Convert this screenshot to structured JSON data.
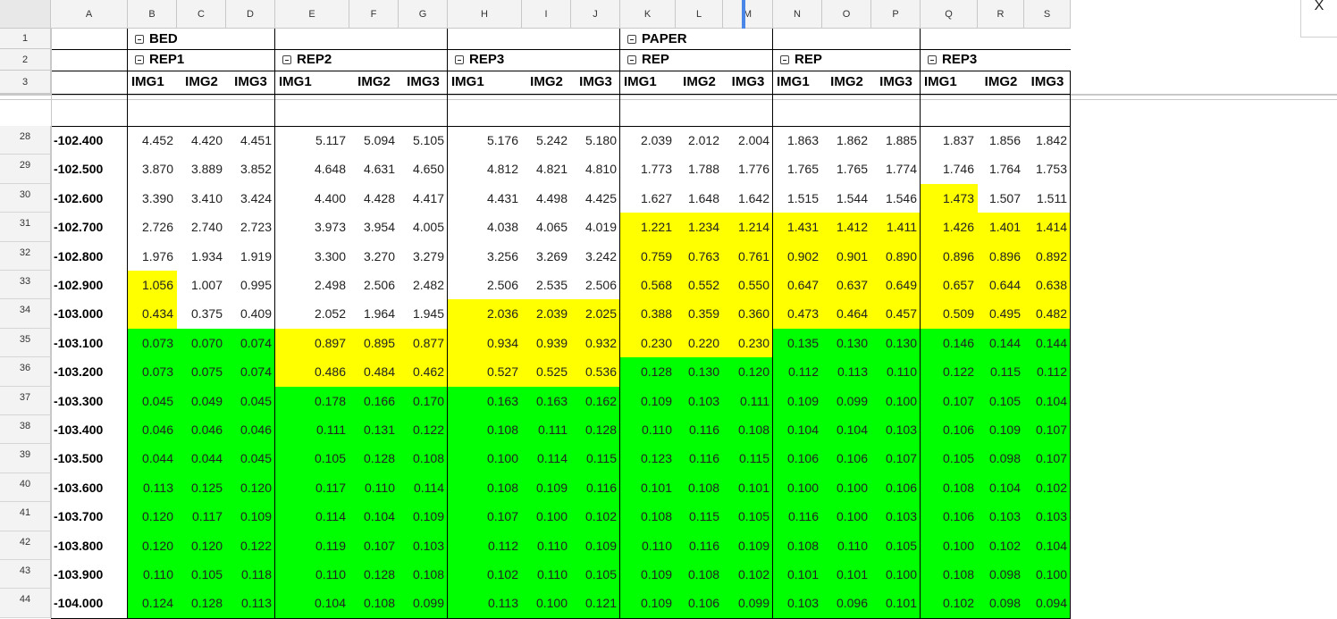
{
  "columns": [
    "A",
    "B",
    "C",
    "D",
    "E",
    "F",
    "G",
    "H",
    "I",
    "J",
    "K",
    "L",
    "M",
    "N",
    "O",
    "P",
    "Q",
    "R",
    "S"
  ],
  "group_headers": [
    {
      "label": "BED",
      "start": 1
    },
    {
      "label": "PAPER",
      "start": 10
    }
  ],
  "rep_headers": [
    {
      "label": "REP1",
      "start": 1
    },
    {
      "label": "REP2",
      "start": 4
    },
    {
      "label": "REP3",
      "start": 7
    },
    {
      "label": "REP",
      "start": 10
    },
    {
      "label": "REP",
      "start": 13
    },
    {
      "label": "REP3",
      "start": 16
    }
  ],
  "img_headers": [
    "IMG1",
    "IMG2",
    "IMG3"
  ],
  "header_row_numbers": [
    "1",
    "2",
    "3"
  ],
  "data_rows": [
    {
      "n": "28",
      "label": "-102.400",
      "v": [
        "4.452",
        "4.420",
        "4.451",
        "5.117",
        "5.094",
        "5.105",
        "5.176",
        "5.242",
        "5.180",
        "2.039",
        "2.012",
        "2.004",
        "1.863",
        "1.862",
        "1.885",
        "1.837",
        "1.856",
        "1.842"
      ]
    },
    {
      "n": "29",
      "label": "-102.500",
      "v": [
        "3.870",
        "3.889",
        "3.852",
        "4.648",
        "4.631",
        "4.650",
        "4.812",
        "4.821",
        "4.810",
        "1.773",
        "1.788",
        "1.776",
        "1.765",
        "1.765",
        "1.774",
        "1.746",
        "1.764",
        "1.753"
      ]
    },
    {
      "n": "30",
      "label": "-102.600",
      "v": [
        "3.390",
        "3.410",
        "3.424",
        "4.400",
        "4.428",
        "4.417",
        "4.431",
        "4.498",
        "4.425",
        "1.627",
        "1.648",
        "1.642",
        "1.515",
        "1.544",
        "1.546",
        "1.473",
        "1.507",
        "1.511"
      ]
    },
    {
      "n": "31",
      "label": "-102.700",
      "v": [
        "2.726",
        "2.740",
        "2.723",
        "3.973",
        "3.954",
        "4.005",
        "4.038",
        "4.065",
        "4.019",
        "1.221",
        "1.234",
        "1.214",
        "1.431",
        "1.412",
        "1.411",
        "1.426",
        "1.401",
        "1.414"
      ]
    },
    {
      "n": "32",
      "label": "-102.800",
      "v": [
        "1.976",
        "1.934",
        "1.919",
        "3.300",
        "3.270",
        "3.279",
        "3.256",
        "3.269",
        "3.242",
        "0.759",
        "0.763",
        "0.761",
        "0.902",
        "0.901",
        "0.890",
        "0.896",
        "0.896",
        "0.892"
      ]
    },
    {
      "n": "33",
      "label": "-102.900",
      "v": [
        "1.056",
        "1.007",
        "0.995",
        "2.498",
        "2.506",
        "2.482",
        "2.506",
        "2.535",
        "2.506",
        "0.568",
        "0.552",
        "0.550",
        "0.647",
        "0.637",
        "0.649",
        "0.657",
        "0.644",
        "0.638"
      ]
    },
    {
      "n": "34",
      "label": "-103.000",
      "v": [
        "0.434",
        "0.375",
        "0.409",
        "2.052",
        "1.964",
        "1.945",
        "2.036",
        "2.039",
        "2.025",
        "0.388",
        "0.359",
        "0.360",
        "0.473",
        "0.464",
        "0.457",
        "0.509",
        "0.495",
        "0.482"
      ]
    },
    {
      "n": "35",
      "label": "-103.100",
      "v": [
        "0.073",
        "0.070",
        "0.074",
        "0.897",
        "0.895",
        "0.877",
        "0.934",
        "0.939",
        "0.932",
        "0.230",
        "0.220",
        "0.230",
        "0.135",
        "0.130",
        "0.130",
        "0.146",
        "0.144",
        "0.144"
      ]
    },
    {
      "n": "36",
      "label": "-103.200",
      "v": [
        "0.073",
        "0.075",
        "0.074",
        "0.486",
        "0.484",
        "0.462",
        "0.527",
        "0.525",
        "0.536",
        "0.128",
        "0.130",
        "0.120",
        "0.112",
        "0.113",
        "0.110",
        "0.122",
        "0.115",
        "0.112"
      ]
    },
    {
      "n": "37",
      "label": "-103.300",
      "v": [
        "0.045",
        "0.049",
        "0.045",
        "0.178",
        "0.166",
        "0.170",
        "0.163",
        "0.163",
        "0.162",
        "0.109",
        "0.103",
        "0.111",
        "0.109",
        "0.099",
        "0.100",
        "0.107",
        "0.105",
        "0.104"
      ]
    },
    {
      "n": "38",
      "label": "-103.400",
      "v": [
        "0.046",
        "0.046",
        "0.046",
        "0.111",
        "0.131",
        "0.122",
        "0.108",
        "0.111",
        "0.128",
        "0.110",
        "0.116",
        "0.108",
        "0.104",
        "0.104",
        "0.103",
        "0.106",
        "0.109",
        "0.107"
      ]
    },
    {
      "n": "39",
      "label": "-103.500",
      "v": [
        "0.044",
        "0.044",
        "0.045",
        "0.105",
        "0.128",
        "0.108",
        "0.100",
        "0.114",
        "0.115",
        "0.123",
        "0.116",
        "0.115",
        "0.106",
        "0.106",
        "0.107",
        "0.105",
        "0.098",
        "0.107"
      ]
    },
    {
      "n": "40",
      "label": "-103.600",
      "v": [
        "0.113",
        "0.125",
        "0.120",
        "0.117",
        "0.110",
        "0.114",
        "0.108",
        "0.109",
        "0.116",
        "0.101",
        "0.108",
        "0.101",
        "0.100",
        "0.100",
        "0.106",
        "0.108",
        "0.104",
        "0.102"
      ]
    },
    {
      "n": "41",
      "label": "-103.700",
      "v": [
        "0.120",
        "0.117",
        "0.109",
        "0.114",
        "0.104",
        "0.109",
        "0.107",
        "0.100",
        "0.102",
        "0.108",
        "0.115",
        "0.105",
        "0.116",
        "0.100",
        "0.103",
        "0.106",
        "0.103",
        "0.103"
      ]
    },
    {
      "n": "42",
      "label": "-103.800",
      "v": [
        "0.120",
        "0.120",
        "0.122",
        "0.119",
        "0.107",
        "0.103",
        "0.112",
        "0.110",
        "0.109",
        "0.110",
        "0.116",
        "0.109",
        "0.108",
        "0.110",
        "0.105",
        "0.100",
        "0.102",
        "0.104"
      ]
    },
    {
      "n": "43",
      "label": "-103.900",
      "v": [
        "0.110",
        "0.105",
        "0.118",
        "0.110",
        "0.128",
        "0.108",
        "0.102",
        "0.110",
        "0.105",
        "0.109",
        "0.108",
        "0.102",
        "0.101",
        "0.101",
        "0.100",
        "0.108",
        "0.098",
        "0.100"
      ]
    },
    {
      "n": "44",
      "label": "-104.000",
      "v": [
        "0.124",
        "0.128",
        "0.113",
        "0.104",
        "0.108",
        "0.099",
        "0.113",
        "0.100",
        "0.121",
        "0.109",
        "0.106",
        "0.099",
        "0.103",
        "0.096",
        "0.101",
        "0.102",
        "0.098",
        "0.094"
      ]
    }
  ],
  "fill_colors": {
    "yellow": "#ffff00",
    "green": "#00ff00"
  },
  "highlight": {
    "yellow_from_row": [
      5,
      7,
      7,
      7,
      7,
      7,
      6,
      6,
      6,
      3,
      3,
      3,
      3,
      3,
      3,
      2,
      3,
      3
    ],
    "green_from_row": [
      7,
      7,
      7,
      9,
      9,
      9,
      9,
      9,
      9,
      8,
      8,
      8,
      7,
      7,
      7,
      7,
      7,
      7
    ]
  },
  "close_label": "X"
}
